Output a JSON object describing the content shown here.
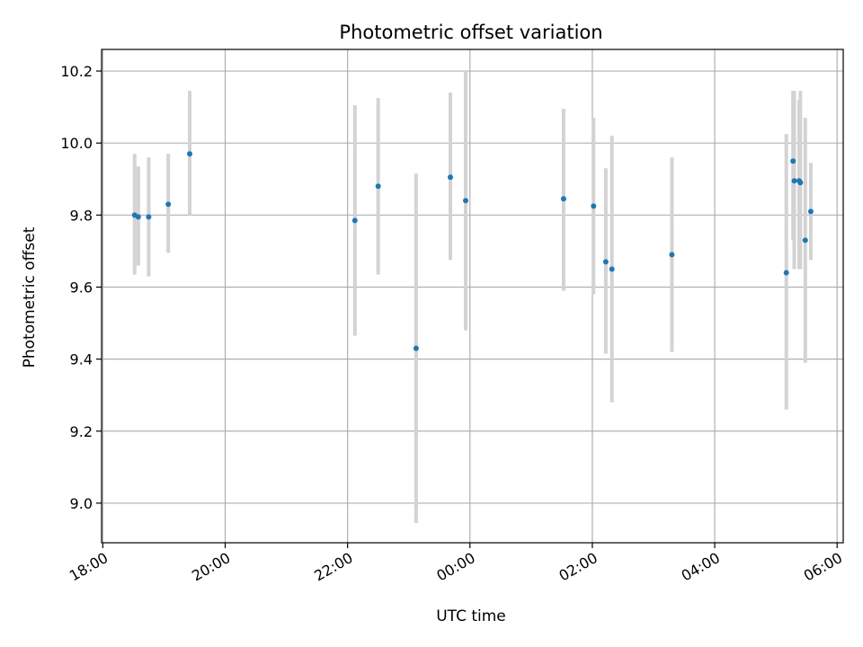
{
  "chart_data": {
    "type": "scatter",
    "title": "Photometric offset variation",
    "xlabel": "UTC time",
    "ylabel": "Photometric offset",
    "x_axis": {
      "unit": "hours since 18:00 UTC",
      "range": [
        -0.02,
        12.1
      ],
      "ticks": [
        0,
        2,
        4,
        6,
        8,
        10,
        12
      ],
      "tick_labels": [
        "18:00",
        "20:00",
        "22:00",
        "00:00",
        "02:00",
        "04:00",
        "06:00"
      ]
    },
    "y_axis": {
      "range": [
        8.89,
        10.26
      ],
      "ticks": [
        9.0,
        9.2,
        9.4,
        9.6,
        9.8,
        10.0,
        10.2
      ],
      "tick_labels": [
        "9.0",
        "9.2",
        "9.4",
        "9.6",
        "9.8",
        "10.0",
        "10.2"
      ]
    },
    "grid": true,
    "marker_color": "#1f77b4",
    "errorbar_color": "#d3d3d3",
    "points": [
      {
        "t": 0.52,
        "y": 9.8,
        "ylo": 9.635,
        "yhi": 9.97
      },
      {
        "t": 0.58,
        "y": 9.795,
        "ylo": 9.66,
        "yhi": 9.935
      },
      {
        "t": 0.75,
        "y": 9.795,
        "ylo": 9.63,
        "yhi": 9.96
      },
      {
        "t": 1.07,
        "y": 9.83,
        "ylo": 9.695,
        "yhi": 9.97
      },
      {
        "t": 1.42,
        "y": 9.97,
        "ylo": 9.8,
        "yhi": 10.145
      },
      {
        "t": 4.12,
        "y": 9.785,
        "ylo": 9.465,
        "yhi": 10.105
      },
      {
        "t": 4.5,
        "y": 9.88,
        "ylo": 9.635,
        "yhi": 10.125
      },
      {
        "t": 5.12,
        "y": 9.43,
        "ylo": 8.945,
        "yhi": 9.915
      },
      {
        "t": 5.68,
        "y": 9.905,
        "ylo": 9.675,
        "yhi": 10.14
      },
      {
        "t": 5.93,
        "y": 9.84,
        "ylo": 9.48,
        "yhi": 10.2
      },
      {
        "t": 7.53,
        "y": 9.845,
        "ylo": 9.59,
        "yhi": 10.095
      },
      {
        "t": 8.02,
        "y": 9.825,
        "ylo": 9.58,
        "yhi": 10.07
      },
      {
        "t": 8.22,
        "y": 9.67,
        "ylo": 9.415,
        "yhi": 9.93
      },
      {
        "t": 8.32,
        "y": 9.65,
        "ylo": 9.28,
        "yhi": 10.02
      },
      {
        "t": 9.3,
        "y": 9.69,
        "ylo": 9.42,
        "yhi": 9.96
      },
      {
        "t": 11.17,
        "y": 9.64,
        "ylo": 9.26,
        "yhi": 10.025
      },
      {
        "t": 11.28,
        "y": 9.95,
        "ylo": 9.73,
        "yhi": 10.145
      },
      {
        "t": 11.3,
        "y": 9.895,
        "ylo": 9.65,
        "yhi": 10.145
      },
      {
        "t": 11.38,
        "y": 9.895,
        "ylo": 9.65,
        "yhi": 10.12
      },
      {
        "t": 11.4,
        "y": 9.89,
        "ylo": 9.65,
        "yhi": 10.145
      },
      {
        "t": 11.48,
        "y": 9.73,
        "ylo": 9.39,
        "yhi": 10.07
      },
      {
        "t": 11.57,
        "y": 9.81,
        "ylo": 9.675,
        "yhi": 9.945
      }
    ]
  }
}
